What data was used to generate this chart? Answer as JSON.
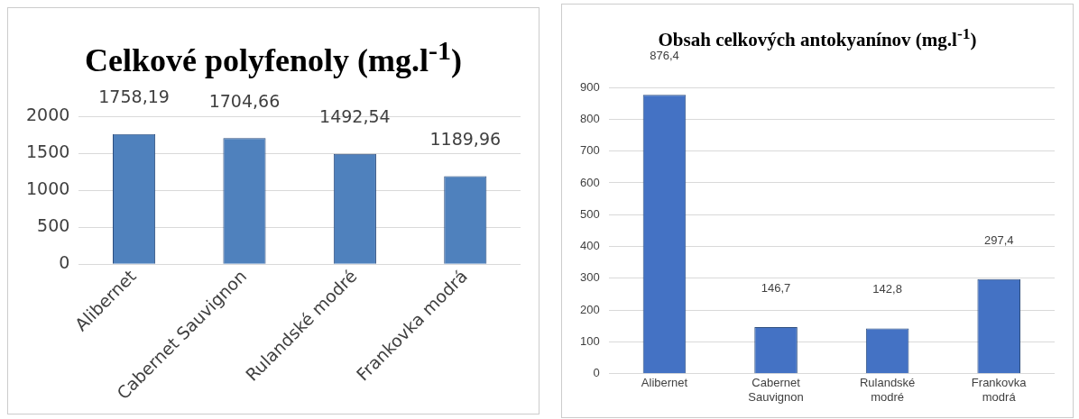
{
  "chart_data": [
    {
      "type": "bar",
      "title": "Celkové polyfenoly (mg.l$^{-1}$)",
      "categories": [
        "Alibernet",
        "Cabernet Sauvignon",
        "Rulandské modré",
        "Frankovka modrá"
      ],
      "values": [
        1758.19,
        1704.66,
        1492.54,
        1189.96
      ],
      "value_labels": [
        "1758,19",
        "1704,66",
        "1492,54",
        "1189,96"
      ],
      "color": "#4f81bd",
      "ylim": [
        0,
        2000
      ],
      "yticks": [
        0,
        500,
        1000,
        1500,
        2000
      ],
      "grid": "y",
      "legend": false
    },
    {
      "type": "bar",
      "title": "Obsah celkových antokyanínov (mg.l$^{-1}$)",
      "categories": [
        "Alibernet",
        "Cabernet Sauvignon",
        "Rulandské modré",
        "Frankovka modrá"
      ],
      "values": [
        876.4,
        146.7,
        142.8,
        297.4
      ],
      "value_labels": [
        "876,4",
        "146,7",
        "142,8",
        "297,4"
      ],
      "color": "#4472c4",
      "ylim": [
        0,
        900
      ],
      "yticks": [
        0,
        100,
        200,
        300,
        400,
        500,
        600,
        700,
        800,
        900
      ],
      "grid": "y",
      "legend": false
    }
  ]
}
